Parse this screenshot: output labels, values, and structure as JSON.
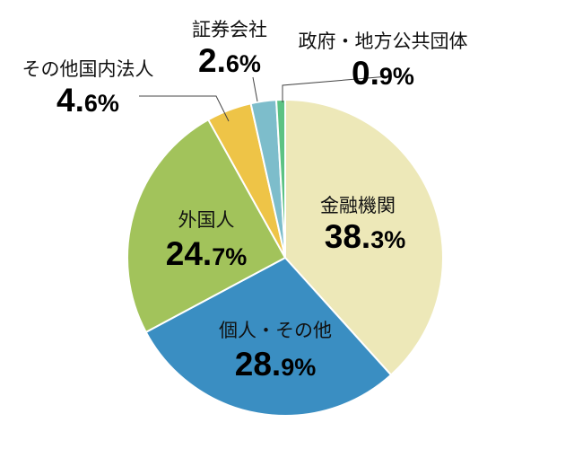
{
  "chart_data": {
    "type": "pie",
    "title": "",
    "start_angle_deg": 0,
    "direction": "clockwise",
    "slices": [
      {
        "label": "金融機関",
        "value": 38.3,
        "int": "38.",
        "dec": "3%",
        "color": "#EDE8B8"
      },
      {
        "label": "個人・その他",
        "value": 28.9,
        "int": "28.",
        "dec": "9%",
        "color": "#3A8EC2"
      },
      {
        "label": "外国人",
        "value": 24.7,
        "int": "24.",
        "dec": "7%",
        "color": "#A2C35B"
      },
      {
        "label": "その他国内法人",
        "value": 4.6,
        "int": "4.",
        "dec": "6%",
        "color": "#EEC447"
      },
      {
        "label": "証券会社",
        "value": 2.6,
        "int": "2.",
        "dec": "6%",
        "color": "#7DBDCB"
      },
      {
        "label": "政府・地方公共団体",
        "value": 0.9,
        "int": "0.",
        "dec": "9%",
        "color": "#5CC283"
      }
    ]
  }
}
